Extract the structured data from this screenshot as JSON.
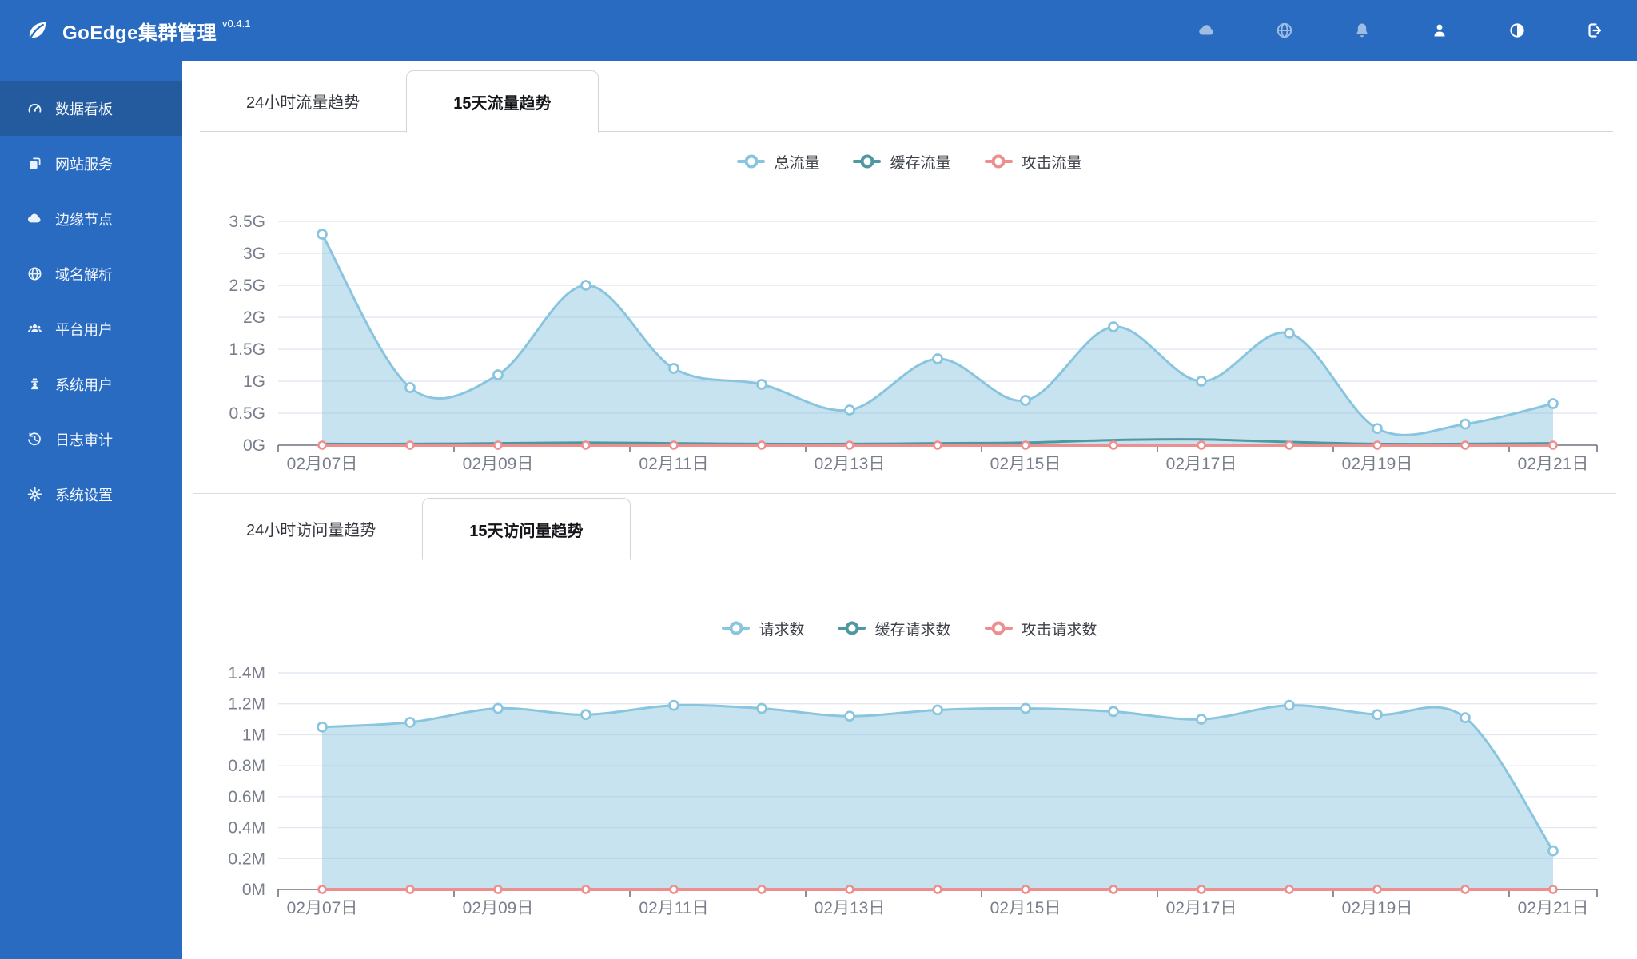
{
  "header": {
    "app_title": "GoEdge集群管理",
    "version": "v0.4.1",
    "logo_icon": "leaf-icon",
    "brand_color": "#2a6bc2",
    "icons": [
      {
        "name": "cloud-icon",
        "muted": true
      },
      {
        "name": "globe-icon",
        "muted": true
      },
      {
        "name": "bell-icon",
        "muted": true
      },
      {
        "name": "user-icon",
        "muted": false
      },
      {
        "name": "contrast-icon",
        "muted": false
      },
      {
        "name": "signout-icon",
        "muted": false
      }
    ]
  },
  "sidebar": {
    "items": [
      {
        "icon": "dashboard-icon",
        "name": "dashboard",
        "label": "数据看板",
        "active": true
      },
      {
        "icon": "sites-icon",
        "name": "websites",
        "label": "网站服务",
        "active": false
      },
      {
        "icon": "cloud-icon",
        "name": "edge-nodes",
        "label": "边缘节点",
        "active": false
      },
      {
        "icon": "globe-icon",
        "name": "dns",
        "label": "域名解析",
        "active": false
      },
      {
        "icon": "users-icon",
        "name": "platform-users",
        "label": "平台用户",
        "active": false
      },
      {
        "icon": "admin-icon",
        "name": "system-users",
        "label": "系统用户",
        "active": false
      },
      {
        "icon": "history-icon",
        "name": "audit-logs",
        "label": "日志审计",
        "active": false
      },
      {
        "icon": "gear-icon",
        "name": "settings",
        "label": "系统设置",
        "active": false
      }
    ]
  },
  "sections": [
    {
      "tabs": [
        {
          "label": "24小时流量趋势",
          "active": false
        },
        {
          "label": "15天流量趋势",
          "active": true
        }
      ],
      "legend": [
        {
          "label": "总流量",
          "color": "#89c5de"
        },
        {
          "label": "缓存流量",
          "color": "#4f97a1"
        },
        {
          "label": "攻击流量",
          "color": "#ee8f8f"
        }
      ]
    },
    {
      "tabs": [
        {
          "label": "24小时访问量趋势",
          "active": false
        },
        {
          "label": "15天访问量趋势",
          "active": true
        }
      ],
      "legend": [
        {
          "label": "请求数",
          "color": "#89c5de"
        },
        {
          "label": "缓存请求数",
          "color": "#4f97a1"
        },
        {
          "label": "攻击请求数",
          "color": "#ee8f8f"
        }
      ]
    }
  ],
  "chart_data": [
    {
      "type": "area",
      "title": "15天流量趋势",
      "categories": [
        "02月07日",
        "02月08日",
        "02月09日",
        "02月10日",
        "02月11日",
        "02月12日",
        "02月13日",
        "02月14日",
        "02月15日",
        "02月16日",
        "02月17日",
        "02月18日",
        "02月19日",
        "02月20日",
        "02月21日"
      ],
      "x_label_every": 2,
      "series": [
        {
          "name": "总流量",
          "color": "#89c5de",
          "values": [
            3.3,
            0.9,
            1.1,
            2.5,
            1.2,
            0.95,
            0.55,
            1.35,
            0.7,
            1.85,
            1.0,
            1.75,
            0.26,
            0.33,
            0.65
          ]
        },
        {
          "name": "缓存流量",
          "color": "#4f97a1",
          "values": [
            0.02,
            0.02,
            0.03,
            0.04,
            0.03,
            0.02,
            0.02,
            0.03,
            0.04,
            0.08,
            0.09,
            0.05,
            0.02,
            0.02,
            0.03
          ]
        },
        {
          "name": "攻击流量",
          "color": "#ee8f8f",
          "values": [
            0,
            0,
            0,
            0,
            0,
            0,
            0,
            0,
            0,
            0,
            0,
            0,
            0,
            0,
            0
          ]
        }
      ],
      "ylim": [
        0,
        3.5
      ],
      "ylabels": [
        "0G",
        "0.5G",
        "1G",
        "1.5G",
        "2G",
        "2.5G",
        "3G",
        "3.5G"
      ],
      "grid": true,
      "legend_position": "top"
    },
    {
      "type": "area",
      "title": "15天访问量趋势",
      "categories": [
        "02月07日",
        "02月08日",
        "02月09日",
        "02月10日",
        "02月11日",
        "02月12日",
        "02月13日",
        "02月14日",
        "02月15日",
        "02月16日",
        "02月17日",
        "02月18日",
        "02月19日",
        "02月20日",
        "02月21日"
      ],
      "x_label_every": 2,
      "series": [
        {
          "name": "请求数",
          "color": "#89c5de",
          "values": [
            1.05,
            1.08,
            1.17,
            1.13,
            1.19,
            1.17,
            1.12,
            1.16,
            1.17,
            1.15,
            1.1,
            1.19,
            1.13,
            1.11,
            0.25
          ]
        },
        {
          "name": "缓存请求数",
          "color": "#4f97a1",
          "values": [
            0,
            0,
            0,
            0,
            0,
            0,
            0,
            0,
            0,
            0,
            0,
            0,
            0,
            0,
            0
          ]
        },
        {
          "name": "攻击请求数",
          "color": "#ee8f8f",
          "values": [
            0,
            0,
            0,
            0,
            0,
            0,
            0,
            0,
            0,
            0,
            0,
            0,
            0,
            0,
            0
          ]
        }
      ],
      "ylim": [
        0,
        1.4
      ],
      "ylabels": [
        "0M",
        "0.2M",
        "0.4M",
        "0.6M",
        "0.8M",
        "1M",
        "1.2M",
        "1.4M"
      ],
      "grid": true,
      "legend_position": "top"
    }
  ]
}
